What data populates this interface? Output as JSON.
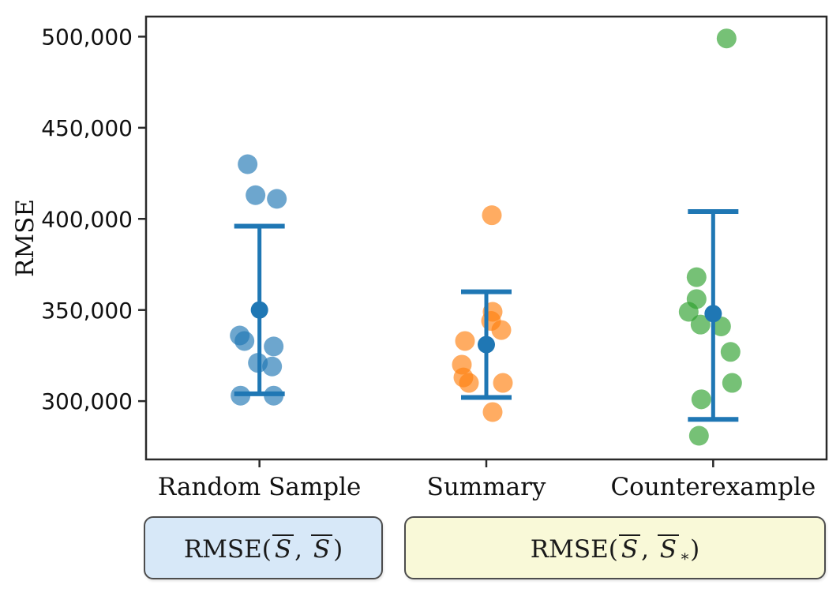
{
  "chart_data": {
    "type": "scatter",
    "title": "",
    "xlabel": "",
    "ylabel": "RMSE",
    "ylim": [
      268000,
      511000
    ],
    "yticks": [
      {
        "value": 500000,
        "label": "500,000"
      },
      {
        "value": 450000,
        "label": "450,000"
      },
      {
        "value": 400000,
        "label": "400,000"
      },
      {
        "value": 350000,
        "label": "350,000"
      },
      {
        "value": 300000,
        "label": "300,000"
      }
    ],
    "categories": [
      "Random Sample",
      "Summary",
      "Counterexample"
    ],
    "grid": false,
    "legend_position": "below",
    "point_alpha": 0.65,
    "errorbar_color": "#1f77b4",
    "series": [
      {
        "name": "Random Sample",
        "color": "#1f77b4",
        "mean": 350000,
        "err_top": 396000,
        "err_bottom": 304000,
        "points": [
          {
            "jitter": -15,
            "value": 430000
          },
          {
            "jitter": -5,
            "value": 413000
          },
          {
            "jitter": 22,
            "value": 411000
          },
          {
            "jitter": -25,
            "value": 336000
          },
          {
            "jitter": -19,
            "value": 333000
          },
          {
            "jitter": 18,
            "value": 330000
          },
          {
            "jitter": -2,
            "value": 321000
          },
          {
            "jitter": 16,
            "value": 319000
          },
          {
            "jitter": -24,
            "value": 303000
          },
          {
            "jitter": 18,
            "value": 303000
          }
        ]
      },
      {
        "name": "Summary",
        "color": "#ff7f0e",
        "mean": 331000,
        "err_top": 360000,
        "err_bottom": 302000,
        "points": [
          {
            "jitter": 7,
            "value": 402000
          },
          {
            "jitter": 8,
            "value": 349000
          },
          {
            "jitter": 6,
            "value": 344000
          },
          {
            "jitter": 19,
            "value": 339000
          },
          {
            "jitter": -27,
            "value": 333000
          },
          {
            "jitter": -31,
            "value": 320000
          },
          {
            "jitter": -29,
            "value": 313000
          },
          {
            "jitter": -22,
            "value": 310000
          },
          {
            "jitter": 21,
            "value": 310000
          },
          {
            "jitter": 8,
            "value": 294000
          }
        ]
      },
      {
        "name": "Counterexample",
        "color": "#2ca02c",
        "mean": 348000,
        "err_top": 404000,
        "err_bottom": 290000,
        "points": [
          {
            "jitter": 17,
            "value": 499000
          },
          {
            "jitter": -21,
            "value": 368000
          },
          {
            "jitter": -21,
            "value": 356000
          },
          {
            "jitter": -31,
            "value": 349000
          },
          {
            "jitter": -16,
            "value": 342000
          },
          {
            "jitter": 10,
            "value": 341000
          },
          {
            "jitter": 22,
            "value": 327000
          },
          {
            "jitter": 24,
            "value": 310000
          },
          {
            "jitter": -15,
            "value": 301000
          },
          {
            "jitter": -18,
            "value": 281000
          }
        ]
      }
    ]
  },
  "legend": {
    "blue_box": {
      "prefix": "RMSE(",
      "arg1": "S",
      "sep": ", ",
      "arg2": "S",
      "sub": "",
      "suffix": ")"
    },
    "yellow_box": {
      "prefix": "RMSE(",
      "arg1": "S",
      "sep": ", ",
      "arg2": "S",
      "sub": "∗",
      "suffix": ")"
    }
  },
  "colors": {
    "blue_box_fill": "#d7e8f8",
    "yellow_box_fill": "#f9f9d8",
    "box_border": "#4d4d4d",
    "frame": "#2a2a2a",
    "text": "#111111"
  }
}
